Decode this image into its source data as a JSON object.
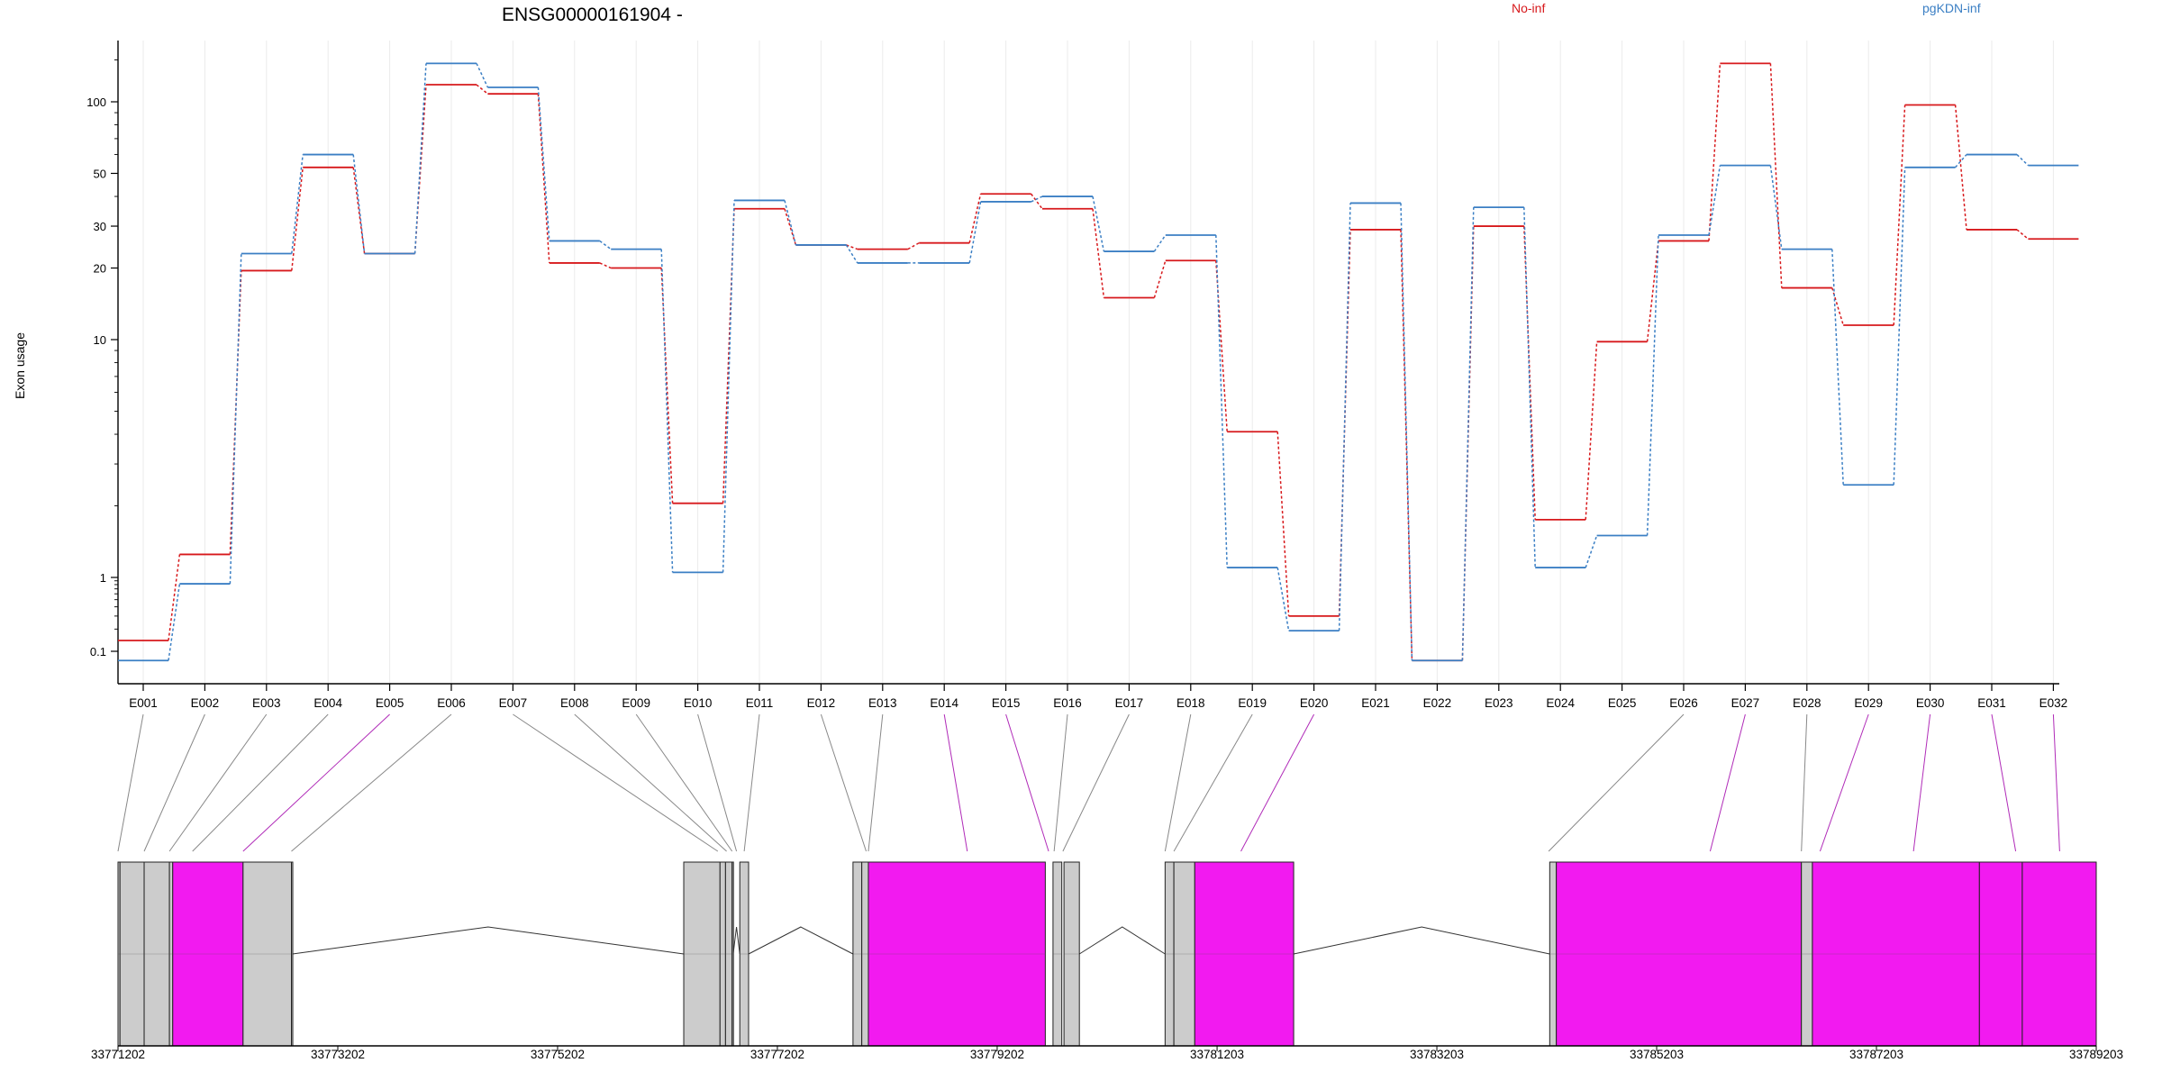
{
  "chart_data": {
    "type": "line",
    "title": "ENSG00000161904 -",
    "ylabel": "Exon usage",
    "yscale": "log",
    "ylim": [
      0.07,
      190
    ],
    "yticks": [
      0.1,
      1,
      10,
      20,
      30,
      50,
      100
    ],
    "grid": true,
    "legend_position": "top-right",
    "colors": {
      "No-inf": "#d7191c",
      "pgKDN-inf": "#3b7fc4",
      "spliced": "#f21af0",
      "unspliced": "#cccccc",
      "connector_spliced": "#b02bb8",
      "connector_other": "#888888"
    },
    "categories": [
      "E001",
      "E002",
      "E003",
      "E004",
      "E005",
      "E006",
      "E007",
      "E008",
      "E009",
      "E010",
      "E011",
      "E012",
      "E013",
      "E014",
      "E015",
      "E016",
      "E017",
      "E018",
      "E019",
      "E020",
      "E021",
      "E022",
      "E023",
      "E024",
      "E025",
      "E026",
      "E027",
      "E028",
      "E029",
      "E030",
      "E031",
      "E032"
    ],
    "series": [
      {
        "name": "No-inf",
        "values": [
          0.14,
          1.25,
          19.5,
          53,
          23,
          118,
          108,
          21,
          20,
          2.05,
          35.5,
          25,
          24,
          25.5,
          41,
          35.5,
          15,
          21.5,
          4.1,
          0.3,
          29,
          0.075,
          30,
          1.75,
          9.8,
          26,
          145,
          16.5,
          11.5,
          97,
          29,
          26.5
        ]
      },
      {
        "name": "pgKDN-inf",
        "values": [
          0.075,
          0.82,
          23,
          60,
          23,
          145,
          115,
          26,
          24,
          1.05,
          38.5,
          25,
          21,
          21,
          38,
          40,
          23.5,
          27.5,
          1.1,
          0.19,
          37.5,
          0.075,
          36,
          1.1,
          1.5,
          27.5,
          54,
          24,
          2.45,
          53,
          60,
          54
        ]
      }
    ],
    "gene_model": {
      "coordinate_labels": [
        "33771202",
        "33773202",
        "33775202",
        "33777202",
        "33779202",
        "33781203",
        "33783203",
        "33785203",
        "33787203",
        "33789203"
      ],
      "coordinate_values": [
        33771202,
        33773202,
        33775202,
        33777202,
        33779202,
        33781203,
        33783203,
        33785203,
        33787203,
        33789203
      ],
      "exons": [
        {
          "id": "E001",
          "start": 33771202,
          "end": 33771220,
          "spliced": false
        },
        {
          "id": "E002",
          "start": 33771220,
          "end": 33771440,
          "spliced": false
        },
        {
          "id": "E003",
          "start": 33771440,
          "end": 33771670,
          "spliced": false
        },
        {
          "id": "E004",
          "start": 33771670,
          "end": 33771700,
          "spliced": false
        },
        {
          "id": "E005",
          "start": 33771700,
          "end": 33772340,
          "spliced": true
        },
        {
          "id": "E006",
          "start": 33772340,
          "end": 33772780,
          "spliced": false
        },
        {
          "id": "E007",
          "start": 33772780,
          "end": 33772790,
          "spliced": false
        },
        {
          "id": "E008",
          "start": 33776350,
          "end": 33776680,
          "spliced": false
        },
        {
          "id": "E009",
          "start": 33776680,
          "end": 33776730,
          "spliced": false
        },
        {
          "id": "E010",
          "start": 33776730,
          "end": 33776790,
          "spliced": false
        },
        {
          "id": "E011",
          "start": 33776790,
          "end": 33776800,
          "spliced": false
        },
        {
          "id": "E012",
          "start": 33776860,
          "end": 33776940,
          "spliced": false
        },
        {
          "id": "E013",
          "start": 33777890,
          "end": 33777970,
          "spliced": false
        },
        {
          "id": "E014",
          "start": 33777970,
          "end": 33778030,
          "spliced": false
        },
        {
          "id": "E015",
          "start": 33778030,
          "end": 33779640,
          "spliced": true
        },
        {
          "id": "E016",
          "start": 33779710,
          "end": 33779790,
          "spliced": false
        },
        {
          "id": "E017",
          "start": 33779810,
          "end": 33779950,
          "spliced": false
        },
        {
          "id": "E018",
          "start": 33780730,
          "end": 33780810,
          "spliced": false
        },
        {
          "id": "E019",
          "start": 33780810,
          "end": 33781000,
          "spliced": false
        },
        {
          "id": "E020",
          "start": 33781000,
          "end": 33781900,
          "spliced": true
        },
        {
          "id": "E021",
          "start": 33784230,
          "end": 33784290,
          "spliced": false
        },
        {
          "id": "E022",
          "start": 33784290,
          "end": 33786520,
          "spliced": true
        },
        {
          "id": "E023",
          "start": 33786520,
          "end": 33786620,
          "spliced": false
        },
        {
          "id": "E024",
          "start": 33786620,
          "end": 33788140,
          "spliced": true
        },
        {
          "id": "E025",
          "start": 33788140,
          "end": 33788530,
          "spliced": true
        },
        {
          "id": "E026",
          "start": 33788530,
          "end": 33789203,
          "spliced": true
        }
      ],
      "connector_targets_bp": [
        33771202,
        33771440,
        33771670,
        33771880,
        33772340,
        33772780,
        33776660,
        33776740,
        33776790,
        33776830,
        33776900,
        33778010,
        33778030,
        33778930,
        33779670,
        33779720,
        33779800,
        33780730,
        33780810,
        33781420,
        33784220,
        33785690,
        33786520,
        33786690,
        33787540,
        33788470,
        33788870
      ],
      "connector_spliced": [
        false,
        false,
        false,
        false,
        true,
        false,
        false,
        false,
        false,
        false,
        false,
        false,
        false,
        true,
        true,
        false,
        false,
        false,
        false,
        true,
        false,
        true,
        false,
        true,
        true,
        true,
        true
      ],
      "connector_from_exon": [
        1,
        2,
        3,
        4,
        5,
        6,
        7,
        8,
        9,
        10,
        11,
        12,
        13,
        14,
        15,
        16,
        17,
        18,
        19,
        20,
        26,
        27,
        28,
        29,
        30,
        31,
        32
      ]
    }
  }
}
